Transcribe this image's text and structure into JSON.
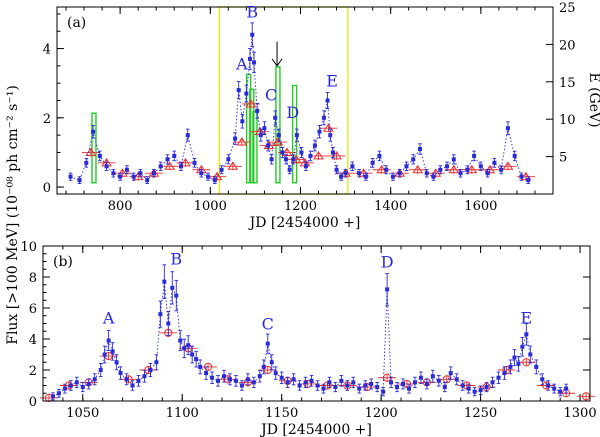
{
  "figure": {
    "ylabel_shared": "Flux [>100 MeV] (10⁻⁰⁸ ph cm⁻² s⁻¹)"
  },
  "colors": {
    "blue": "#2a2ad8",
    "red": "#e83030",
    "green": "#22cc22",
    "yellow": "#e8e800",
    "axis": "#000000"
  },
  "chart_data": [
    {
      "type": "scatter",
      "panel": "(a)",
      "xlabel": "JD [2454000 +]",
      "ylabel": "",
      "ylabel_right": "E (GeV)",
      "xlim": [
        660,
        1760
      ],
      "ylim": [
        -0.2,
        5.2
      ],
      "ylim_right": [
        0,
        25
      ],
      "xticks": [
        800,
        1000,
        1200,
        1400,
        1600
      ],
      "yticks": [
        0,
        2,
        4
      ],
      "yticks_right": [
        5,
        10,
        15,
        20,
        25
      ],
      "flare_labels": [
        {
          "text": "A",
          "x": 1070,
          "y": 3.4
        },
        {
          "text": "B",
          "x": 1093,
          "y": 4.9
        },
        {
          "text": "C",
          "x": 1135,
          "y": 2.5
        },
        {
          "text": "D",
          "x": 1183,
          "y": 2.0
        },
        {
          "text": "E",
          "x": 1270,
          "y": 2.9
        }
      ],
      "arrow": {
        "x": 1148,
        "y_from": 4.2,
        "y_to": 3.5
      },
      "zoom_box": {
        "x0": 1020,
        "x1": 1305,
        "y0": 0,
        "y1": 25
      },
      "photon_energies_gev": [
        {
          "x": 742,
          "e": 10.8
        },
        {
          "x": 1085,
          "e": 16.0
        },
        {
          "x": 1092,
          "e": 14.0
        },
        {
          "x": 1099,
          "e": 11.0
        },
        {
          "x": 1150,
          "e": 17.0
        },
        {
          "x": 1187,
          "e": 14.5
        }
      ],
      "series": [
        {
          "name": "daily flux",
          "x": [
            690,
            710,
            725,
            740,
            755,
            770,
            785,
            800,
            815,
            830,
            845,
            860,
            875,
            890,
            905,
            920,
            935,
            950,
            965,
            980,
            995,
            1010,
            1025,
            1040,
            1055,
            1063,
            1071,
            1080,
            1088,
            1093,
            1097,
            1104,
            1112,
            1120,
            1128,
            1136,
            1144,
            1152,
            1160,
            1168,
            1176,
            1184,
            1192,
            1202,
            1212,
            1222,
            1232,
            1242,
            1252,
            1260,
            1266,
            1272,
            1280,
            1290,
            1300,
            1315,
            1330,
            1345,
            1360,
            1375,
            1390,
            1405,
            1420,
            1435,
            1450,
            1465,
            1480,
            1495,
            1510,
            1525,
            1540,
            1555,
            1570,
            1585,
            1600,
            1615,
            1630,
            1645,
            1660,
            1675,
            1690,
            1705
          ],
          "values": [
            0.3,
            0.2,
            0.7,
            1.6,
            0.9,
            0.6,
            0.4,
            0.3,
            0.5,
            0.3,
            0.4,
            0.2,
            0.4,
            0.6,
            0.8,
            0.9,
            0.6,
            1.5,
            0.7,
            0.4,
            0.3,
            0.2,
            0.5,
            0.8,
            1.4,
            2.8,
            1.9,
            2.7,
            3.7,
            4.4,
            3.6,
            2.2,
            1.5,
            1.7,
            1.2,
            0.8,
            2.0,
            1.5,
            1.0,
            0.8,
            0.5,
            0.8,
            1.5,
            1.0,
            0.6,
            0.9,
            1.2,
            1.6,
            2.0,
            2.5,
            1.5,
            1.0,
            0.5,
            0.3,
            0.4,
            0.6,
            0.4,
            0.3,
            0.7,
            0.9,
            0.5,
            0.3,
            0.4,
            0.6,
            0.8,
            1.1,
            0.4,
            0.3,
            0.5,
            0.6,
            0.8,
            0.4,
            0.5,
            0.9,
            0.6,
            0.4,
            0.7,
            0.5,
            1.7,
            0.9,
            0.3,
            0.2
          ]
        },
        {
          "name": "weekly flux",
          "x": [
            735,
            770,
            805,
            840,
            875,
            910,
            945,
            980,
            1015,
            1050,
            1070,
            1090,
            1110,
            1130,
            1150,
            1170,
            1190,
            1210,
            1240,
            1262,
            1280,
            1300,
            1340,
            1380,
            1420,
            1460,
            1500,
            1540,
            1580,
            1620,
            1660,
            1700
          ],
          "values": [
            1.0,
            0.7,
            0.4,
            0.3,
            0.4,
            0.6,
            0.7,
            0.5,
            0.3,
            0.6,
            1.3,
            2.4,
            1.6,
            1.2,
            1.3,
            1.0,
            0.8,
            0.7,
            0.9,
            1.7,
            0.9,
            0.4,
            0.4,
            0.5,
            0.4,
            0.5,
            0.4,
            0.5,
            0.5,
            0.5,
            0.6,
            0.3
          ]
        }
      ]
    },
    {
      "type": "scatter",
      "panel": "(b)",
      "xlabel": "JD [2454000 +]",
      "ylabel": "Flux [>100 MeV] (10⁻⁰⁸ ph cm⁻² s⁻¹)",
      "xlim": [
        1030,
        1305
      ],
      "ylim": [
        0,
        10
      ],
      "xticks": [
        1050,
        1100,
        1150,
        1200,
        1250,
        1300
      ],
      "yticks": [
        0,
        2,
        4,
        6,
        8,
        10
      ],
      "flare_labels": [
        {
          "text": "A",
          "x": 1063,
          "y": 5.0
        },
        {
          "text": "B",
          "x": 1097,
          "y": 8.8
        },
        {
          "text": "C",
          "x": 1143,
          "y": 4.6
        },
        {
          "text": "D",
          "x": 1203,
          "y": 8.6
        },
        {
          "text": "E",
          "x": 1273,
          "y": 5.0
        }
      ],
      "series": [
        {
          "name": "6-hour flux",
          "x": [
            1035,
            1038,
            1041,
            1044,
            1047,
            1050,
            1053,
            1056,
            1059,
            1061,
            1063,
            1065,
            1067,
            1069,
            1072,
            1075,
            1078,
            1081,
            1084,
            1087,
            1089,
            1091,
            1093,
            1095,
            1097,
            1099,
            1101,
            1103,
            1105,
            1107,
            1109,
            1112,
            1115,
            1118,
            1121,
            1124,
            1127,
            1130,
            1133,
            1136,
            1139,
            1141,
            1143,
            1145,
            1147,
            1150,
            1153,
            1156,
            1159,
            1162,
            1165,
            1168,
            1171,
            1174,
            1177,
            1180,
            1183,
            1186,
            1189,
            1192,
            1195,
            1198,
            1201,
            1203,
            1205,
            1208,
            1211,
            1214,
            1217,
            1220,
            1223,
            1226,
            1229,
            1232,
            1235,
            1238,
            1241,
            1244,
            1247,
            1250,
            1253,
            1256,
            1259,
            1262,
            1265,
            1267,
            1269,
            1271,
            1273,
            1275,
            1278,
            1281,
            1284,
            1287,
            1290,
            1293
          ],
          "values": [
            0.3,
            0.5,
            0.8,
            1.0,
            1.2,
            0.9,
            1.1,
            1.4,
            2.0,
            3.0,
            3.9,
            3.2,
            2.5,
            1.8,
            1.4,
            1.0,
            1.3,
            1.6,
            2.0,
            2.5,
            5.6,
            7.7,
            5.0,
            7.3,
            6.8,
            3.9,
            3.4,
            3.6,
            3.0,
            2.7,
            2.2,
            1.8,
            1.5,
            1.3,
            1.6,
            1.4,
            1.3,
            1.0,
            1.4,
            1.2,
            1.6,
            2.2,
            3.7,
            2.5,
            1.8,
            1.5,
            1.2,
            1.4,
            1.0,
            1.2,
            1.3,
            1.0,
            0.8,
            1.2,
            0.9,
            1.3,
            1.0,
            1.2,
            0.8,
            1.0,
            1.1,
            0.9,
            0.6,
            7.2,
            1.2,
            0.9,
            1.1,
            0.8,
            1.2,
            1.5,
            1.1,
            1.6,
            1.3,
            0.9,
            1.8,
            1.4,
            1.0,
            0.8,
            0.6,
            0.7,
            0.9,
            1.2,
            1.5,
            1.8,
            2.2,
            2.8,
            2.4,
            3.5,
            4.3,
            3.0,
            2.2,
            1.4,
            1.0,
            0.8,
            0.6,
            0.8
          ]
        },
        {
          "name": "daily flux",
          "x": [
            1033,
            1043,
            1053,
            1063,
            1073,
            1083,
            1093,
            1103,
            1113,
            1123,
            1133,
            1143,
            1153,
            1163,
            1173,
            1183,
            1193,
            1203,
            1213,
            1223,
            1233,
            1243,
            1253,
            1263,
            1273,
            1283,
            1293,
            1303
          ],
          "values": [
            0.2,
            1.0,
            1.2,
            2.9,
            1.4,
            2.0,
            4.4,
            3.4,
            2.2,
            1.4,
            1.2,
            2.0,
            1.3,
            1.1,
            1.0,
            1.0,
            0.9,
            1.5,
            1.1,
            1.2,
            1.4,
            1.0,
            0.9,
            2.0,
            2.5,
            1.0,
            0.5,
            0.3
          ]
        }
      ]
    }
  ]
}
